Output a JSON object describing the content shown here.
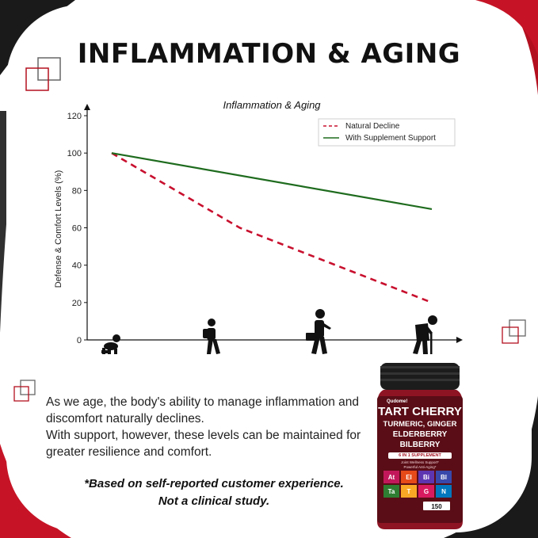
{
  "headline": "INFLAMMATION & AGING",
  "chart_data": {
    "type": "line",
    "title": "Inflammation & Aging",
    "xlabel": "",
    "ylabel": "Defense & Comfort Levels (%)",
    "ylim": [
      0,
      120
    ],
    "yticks": [
      0,
      20,
      40,
      60,
      80,
      100,
      120
    ],
    "x_stages": [
      "baby",
      "child",
      "adult",
      "elderly"
    ],
    "series": [
      {
        "name": "Natural Decline",
        "style": "dashed",
        "color": "#c8102e",
        "points": [
          [
            0,
            100
          ],
          [
            1.2,
            60
          ],
          [
            3,
            20
          ]
        ]
      },
      {
        "name": "With Supplement Support",
        "style": "solid",
        "color": "#1e6b1e",
        "points": [
          [
            0,
            100
          ],
          [
            3,
            70
          ]
        ]
      }
    ],
    "legend_position": "top-right",
    "grid": false
  },
  "paragraphs": [
    "As we age, the body's ability to manage inflammation and discomfort naturally declines.",
    "With support, however, these levels can be maintained for greater resilience and comfort."
  ],
  "paragraph_lines": [
    [
      "As we age, the body's ability to manage inflammation and",
      "discomfort naturally declines."
    ],
    [
      "With support, however, these levels can be maintained for",
      "greater resilience and comfort."
    ]
  ],
  "footnote": [
    "*Based on self-reported customer experience.",
    "Not a clinical study."
  ],
  "product": {
    "brand": "Qudome!",
    "title": "TART CHERRY",
    "line2": "TURMERIC, GINGER",
    "line3": "ELDERBERRY",
    "line4": "BILBERRY",
    "badge": "6 IN 1 SUPPLEMENT",
    "small1": "Joint Wellness Support*",
    "small2": "Powerful Anti-Aging*",
    "tiles": [
      "At",
      "El",
      "Bi",
      "Bl",
      "Ta",
      "T",
      "G",
      "N"
    ],
    "count": "150",
    "colors": {
      "bottle": "#8e1424",
      "cap": "#1c1c1c",
      "label_dark": "#5a0d16"
    }
  },
  "colors": {
    "frame_dark": "#1a1a1a",
    "accent_red": "#b3101f",
    "decor_gray": "#666666"
  }
}
